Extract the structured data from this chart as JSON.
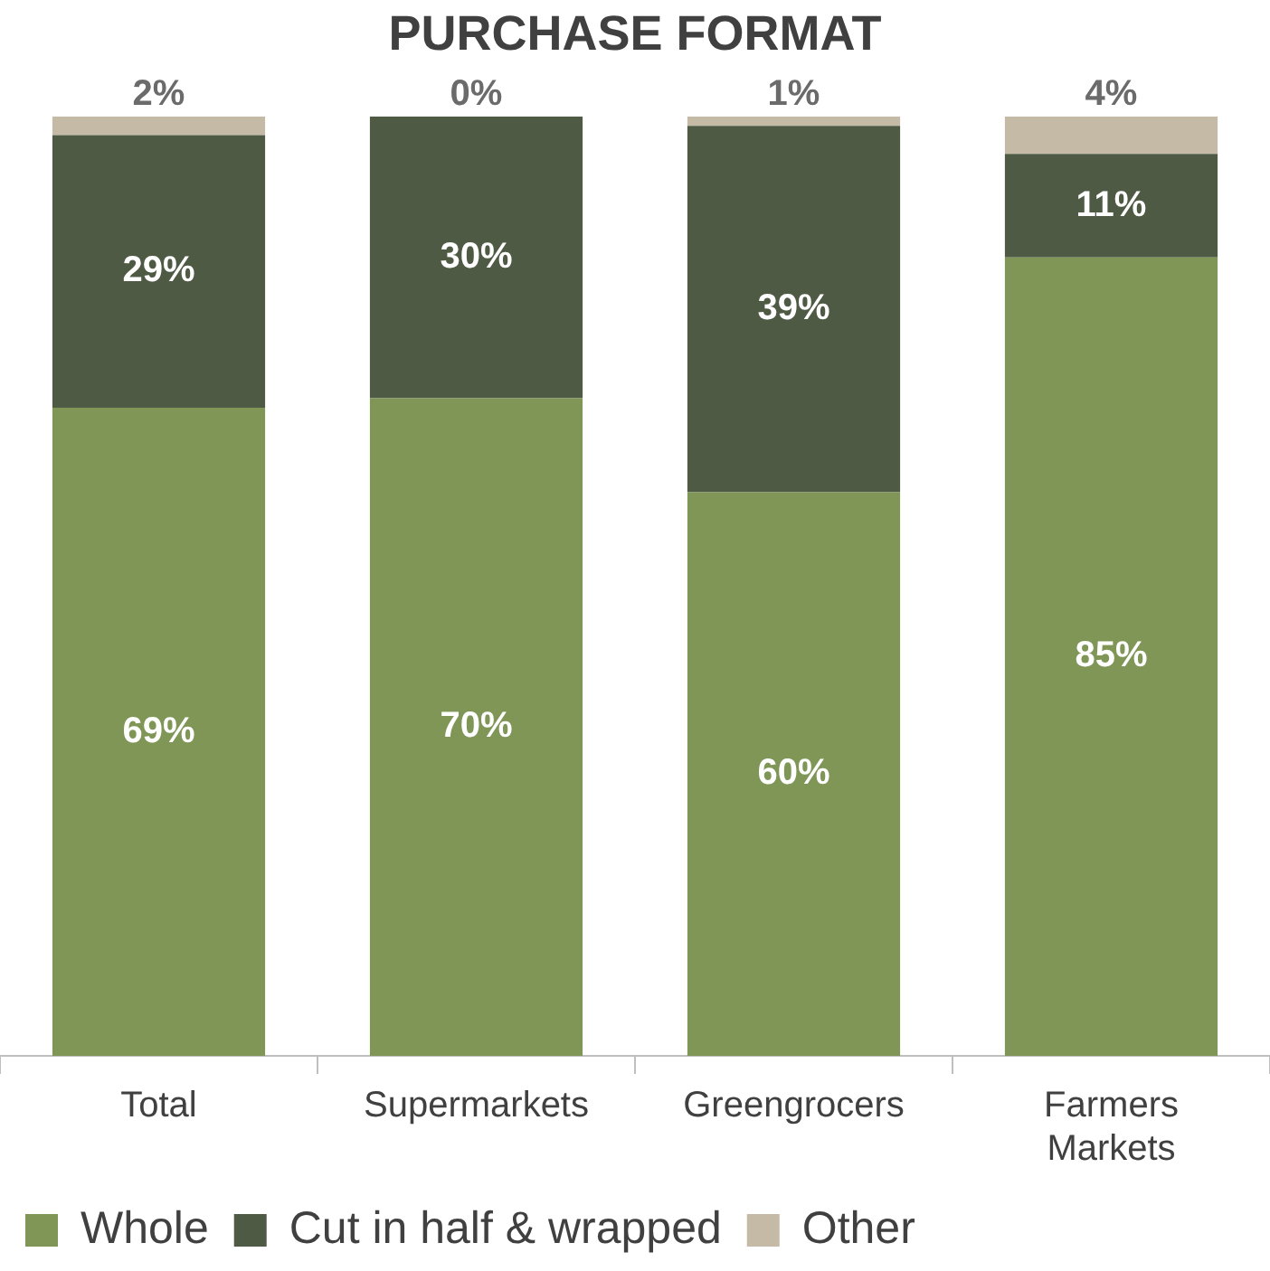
{
  "chart_data": {
    "type": "bar",
    "title": "PURCHASE FORMAT",
    "stacked": true,
    "legend": "bottom",
    "grid": false,
    "categories": [
      "Total",
      "Supermarkets",
      "Greengrocers",
      "Farmers Markets"
    ],
    "series": [
      {
        "name": "Whole",
        "color": "#7f9656",
        "values": [
          69,
          70,
          60,
          85
        ],
        "value_labels": [
          "69%",
          "70%",
          "60%",
          "85%"
        ]
      },
      {
        "name": "Cut in half & wrapped",
        "color": "#4f5a45",
        "values": [
          29,
          30,
          39,
          11
        ],
        "value_labels": [
          "29%",
          "30%",
          "39%",
          "11%"
        ]
      },
      {
        "name": "Other",
        "color": "#c4baa5",
        "values": [
          2,
          0,
          1,
          4
        ],
        "value_labels": [
          "2%",
          "0%",
          "1%",
          "4%"
        ]
      }
    ]
  }
}
